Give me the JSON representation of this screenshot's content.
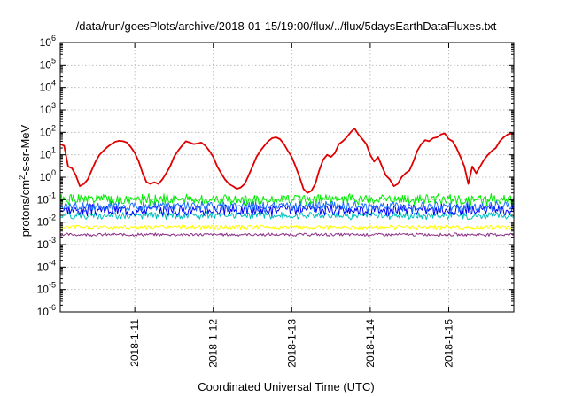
{
  "chart_data": {
    "type": "line",
    "title": "/data/run/goesPlots/archive/2018-01-15/19:00/flux/../flux/5daysEarthDataFluxes.txt",
    "xlabel": "Coordinated Universal Time (UTC)",
    "ylabel_parts": [
      "protons/cm",
      "2",
      "-s-sr-MeV"
    ],
    "yscale": "log",
    "ylim_exp": [
      -6,
      6
    ],
    "y_tick_labels": [
      {
        "base": "10",
        "exp": "6"
      },
      {
        "base": "10",
        "exp": "5"
      },
      {
        "base": "10",
        "exp": "4"
      },
      {
        "base": "10",
        "exp": "3"
      },
      {
        "base": "10",
        "exp": "2"
      },
      {
        "base": "10",
        "exp": "1"
      },
      {
        "base": "10",
        "exp": "0"
      },
      {
        "base": "10",
        "exp": "-1"
      },
      {
        "base": "10",
        "exp": "-2"
      },
      {
        "base": "10",
        "exp": "-3"
      },
      {
        "base": "10",
        "exp": "-4"
      },
      {
        "base": "10",
        "exp": "-5"
      },
      {
        "base": "10",
        "exp": "-6"
      }
    ],
    "x_range_days": [
      10.05,
      15.83
    ],
    "x_ticks": [
      {
        "day": 11,
        "label": "2018-1-11"
      },
      {
        "day": 12,
        "label": "2018-1-12"
      },
      {
        "day": 13,
        "label": "2018-1-13"
      },
      {
        "day": 14,
        "label": "2018-1-14"
      },
      {
        "day": 15,
        "label": "2018-1-15"
      }
    ],
    "grid": true,
    "series": [
      {
        "color": "#e00000",
        "width": 1.8,
        "points": [
          [
            10.05,
            30
          ],
          [
            10.1,
            25
          ],
          [
            10.15,
            3
          ],
          [
            10.2,
            2.5
          ],
          [
            10.25,
            1.2
          ],
          [
            10.3,
            0.4
          ],
          [
            10.35,
            0.5
          ],
          [
            10.4,
            0.8
          ],
          [
            10.45,
            2
          ],
          [
            10.5,
            5
          ],
          [
            10.55,
            10
          ],
          [
            10.6,
            15
          ],
          [
            10.65,
            22
          ],
          [
            10.7,
            30
          ],
          [
            10.75,
            38
          ],
          [
            10.8,
            42
          ],
          [
            10.85,
            40
          ],
          [
            10.9,
            35
          ],
          [
            10.95,
            22
          ],
          [
            11.0,
            12
          ],
          [
            11.05,
            5
          ],
          [
            11.1,
            1.5
          ],
          [
            11.15,
            0.6
          ],
          [
            11.2,
            0.5
          ],
          [
            11.25,
            0.6
          ],
          [
            11.3,
            0.5
          ],
          [
            11.35,
            0.8
          ],
          [
            11.4,
            1.5
          ],
          [
            11.45,
            3
          ],
          [
            11.5,
            8
          ],
          [
            11.55,
            15
          ],
          [
            11.6,
            25
          ],
          [
            11.65,
            40
          ],
          [
            11.7,
            35
          ],
          [
            11.75,
            30
          ],
          [
            11.8,
            32
          ],
          [
            11.85,
            35
          ],
          [
            11.9,
            25
          ],
          [
            11.95,
            15
          ],
          [
            12.0,
            8
          ],
          [
            12.05,
            3
          ],
          [
            12.1,
            1.5
          ],
          [
            12.15,
            0.8
          ],
          [
            12.2,
            0.5
          ],
          [
            12.25,
            0.4
          ],
          [
            12.3,
            0.3
          ],
          [
            12.35,
            0.35
          ],
          [
            12.4,
            0.5
          ],
          [
            12.45,
            1.2
          ],
          [
            12.5,
            3
          ],
          [
            12.55,
            8
          ],
          [
            12.6,
            15
          ],
          [
            12.65,
            25
          ],
          [
            12.7,
            40
          ],
          [
            12.75,
            55
          ],
          [
            12.8,
            60
          ],
          [
            12.85,
            50
          ],
          [
            12.9,
            30
          ],
          [
            12.95,
            15
          ],
          [
            13.0,
            8
          ],
          [
            13.05,
            3
          ],
          [
            13.1,
            1
          ],
          [
            13.15,
            0.3
          ],
          [
            13.2,
            0.2
          ],
          [
            13.25,
            0.25
          ],
          [
            13.3,
            0.5
          ],
          [
            13.35,
            2
          ],
          [
            13.4,
            6
          ],
          [
            13.45,
            10
          ],
          [
            13.5,
            8
          ],
          [
            13.55,
            12
          ],
          [
            13.6,
            30
          ],
          [
            13.65,
            40
          ],
          [
            13.7,
            60
          ],
          [
            13.75,
            100
          ],
          [
            13.8,
            150
          ],
          [
            13.85,
            80
          ],
          [
            13.9,
            50
          ],
          [
            13.95,
            30
          ],
          [
            14.0,
            10
          ],
          [
            14.05,
            5
          ],
          [
            14.1,
            8
          ],
          [
            14.15,
            3
          ],
          [
            14.2,
            1.2
          ],
          [
            14.25,
            0.8
          ],
          [
            14.3,
            0.4
          ],
          [
            14.35,
            0.5
          ],
          [
            14.4,
            1
          ],
          [
            14.45,
            1.5
          ],
          [
            14.5,
            2
          ],
          [
            14.55,
            5
          ],
          [
            14.6,
            15
          ],
          [
            14.65,
            30
          ],
          [
            14.7,
            45
          ],
          [
            14.75,
            40
          ],
          [
            14.8,
            55
          ],
          [
            14.85,
            60
          ],
          [
            14.9,
            80
          ],
          [
            14.95,
            90
          ],
          [
            15.0,
            50
          ],
          [
            15.05,
            40
          ],
          [
            15.1,
            20
          ],
          [
            15.15,
            8
          ],
          [
            15.2,
            3
          ],
          [
            15.25,
            0.5
          ],
          [
            15.3,
            3
          ],
          [
            15.35,
            1.5
          ],
          [
            15.4,
            3
          ],
          [
            15.45,
            6
          ],
          [
            15.5,
            10
          ],
          [
            15.55,
            15
          ],
          [
            15.6,
            20
          ],
          [
            15.65,
            40
          ],
          [
            15.7,
            60
          ],
          [
            15.75,
            80
          ],
          [
            15.8,
            90
          ],
          [
            15.83,
            85
          ]
        ]
      },
      {
        "color": "#00ee00",
        "width": 1.0,
        "center": 0.1,
        "noise_decades": 0.22,
        "seed": 1
      },
      {
        "color": "#00c0c0",
        "width": 1.0,
        "center": 0.02,
        "noise_decades": 0.15,
        "seed": 2
      },
      {
        "color": "#0000ff",
        "width": 1.0,
        "center": 0.035,
        "noise_decades": 0.22,
        "seed": 3
      },
      {
        "color": "#1e6fff",
        "width": 1.0,
        "center": 0.05,
        "noise_decades": 0.2,
        "seed": 4
      },
      {
        "color": "#ffff00",
        "width": 1.0,
        "center": 0.006,
        "noise_decades": 0.08,
        "seed": 5
      },
      {
        "color": "#8b2d86",
        "width": 1.0,
        "center": 0.0028,
        "noise_decades": 0.06,
        "seed": 6
      }
    ]
  }
}
